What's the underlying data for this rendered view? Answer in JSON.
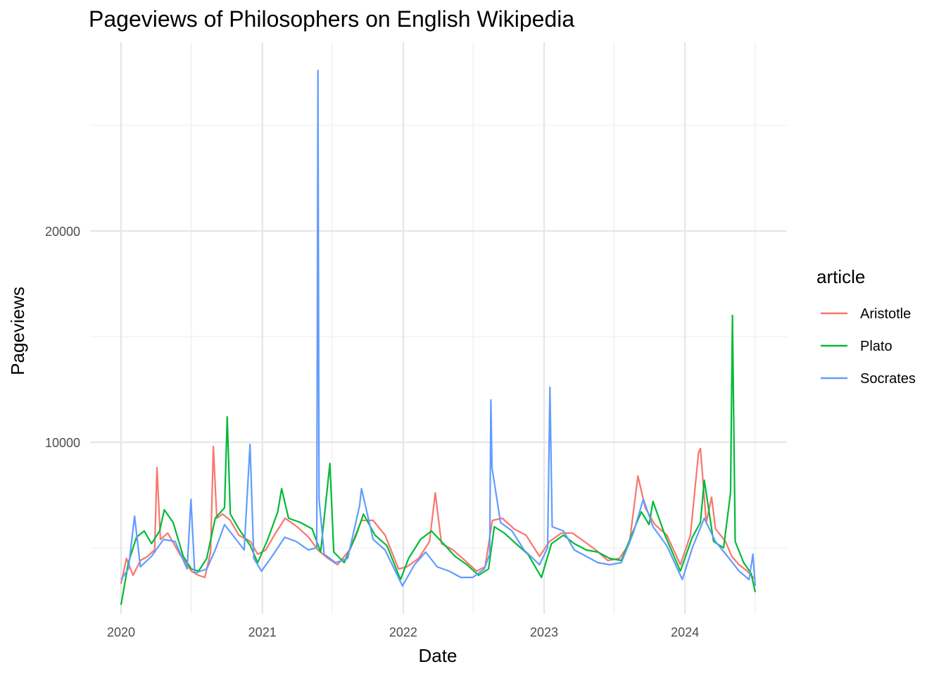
{
  "chart_data": {
    "type": "line",
    "title": "Pageviews of Philosophers on English Wikipedia",
    "xlabel": "Date",
    "ylabel": "Pageviews",
    "x_domain": [
      "2020-01-01",
      "2024-07-01"
    ],
    "ylim": [
      1500,
      28000
    ],
    "y_ticks": [
      10000,
      20000
    ],
    "y_minor_ticks": [
      5000,
      15000,
      25000
    ],
    "x_ticks": [
      {
        "date": "2020-01-01",
        "label": "2020"
      },
      {
        "date": "2021-01-01",
        "label": "2021"
      },
      {
        "date": "2022-01-01",
        "label": "2022"
      },
      {
        "date": "2023-01-01",
        "label": "2023"
      },
      {
        "date": "2024-01-01",
        "label": "2024"
      }
    ],
    "x_minor_ticks": [
      "2020-07-01",
      "2021-07-01",
      "2022-07-01",
      "2023-07-01",
      "2024-07-01"
    ],
    "grid": true,
    "legend": {
      "title": "article",
      "placement": "right"
    },
    "series": [
      {
        "name": "Aristotle",
        "color": "#F8766D",
        "points": [
          [
            "2020-01-01",
            3300
          ],
          [
            "2020-01-15",
            4500
          ],
          [
            "2020-02-01",
            3700
          ],
          [
            "2020-02-20",
            4400
          ],
          [
            "2020-03-10",
            4600
          ],
          [
            "2020-03-28",
            4900
          ],
          [
            "2020-04-03",
            8800
          ],
          [
            "2020-04-12",
            5400
          ],
          [
            "2020-05-01",
            5700
          ],
          [
            "2020-06-01",
            4700
          ],
          [
            "2020-07-01",
            3900
          ],
          [
            "2020-07-20",
            3700
          ],
          [
            "2020-08-05",
            3600
          ],
          [
            "2020-08-20",
            4800
          ],
          [
            "2020-08-27",
            9800
          ],
          [
            "2020-09-05",
            6400
          ],
          [
            "2020-09-20",
            6600
          ],
          [
            "2020-10-10",
            6300
          ],
          [
            "2020-11-01",
            5600
          ],
          [
            "2020-12-01",
            5300
          ],
          [
            "2020-12-20",
            4700
          ],
          [
            "2021-01-10",
            4900
          ],
          [
            "2021-02-01",
            5600
          ],
          [
            "2021-03-01",
            6400
          ],
          [
            "2021-04-01",
            6000
          ],
          [
            "2021-05-01",
            5500
          ],
          [
            "2021-05-25",
            4900
          ],
          [
            "2021-06-20",
            4500
          ],
          [
            "2021-07-15",
            4200
          ],
          [
            "2021-08-15",
            4900
          ],
          [
            "2021-09-15",
            6300
          ],
          [
            "2021-10-15",
            6300
          ],
          [
            "2021-11-15",
            5600
          ],
          [
            "2021-12-20",
            4000
          ],
          [
            "2022-01-10",
            4100
          ],
          [
            "2022-02-10",
            4500
          ],
          [
            "2022-03-10",
            5300
          ],
          [
            "2022-03-25",
            7600
          ],
          [
            "2022-04-10",
            5200
          ],
          [
            "2022-05-10",
            4900
          ],
          [
            "2022-06-10",
            4400
          ],
          [
            "2022-07-10",
            3900
          ],
          [
            "2022-08-01",
            4100
          ],
          [
            "2022-08-20",
            6300
          ],
          [
            "2022-09-15",
            6400
          ],
          [
            "2022-10-15",
            5900
          ],
          [
            "2022-11-15",
            5600
          ],
          [
            "2022-12-20",
            4600
          ],
          [
            "2023-01-15",
            5300
          ],
          [
            "2023-02-15",
            5700
          ],
          [
            "2023-03-15",
            5700
          ],
          [
            "2023-04-15",
            5300
          ],
          [
            "2023-05-15",
            4900
          ],
          [
            "2023-06-15",
            4400
          ],
          [
            "2023-07-15",
            4500
          ],
          [
            "2023-08-10",
            5200
          ],
          [
            "2023-09-01",
            8400
          ],
          [
            "2023-09-20",
            6900
          ],
          [
            "2023-10-15",
            6100
          ],
          [
            "2023-11-15",
            5600
          ],
          [
            "2023-12-20",
            4200
          ],
          [
            "2024-01-15",
            5600
          ],
          [
            "2024-02-05",
            9500
          ],
          [
            "2024-02-10",
            9700
          ],
          [
            "2024-02-25",
            6200
          ],
          [
            "2024-03-10",
            7400
          ],
          [
            "2024-03-20",
            5900
          ],
          [
            "2024-04-15",
            5300
          ],
          [
            "2024-05-01",
            4600
          ],
          [
            "2024-05-20",
            4200
          ],
          [
            "2024-06-10",
            3900
          ],
          [
            "2024-07-01",
            3500
          ]
        ]
      },
      {
        "name": "Plato",
        "color": "#00BA38",
        "points": [
          [
            "2020-01-01",
            2300
          ],
          [
            "2020-01-20",
            4300
          ],
          [
            "2020-02-10",
            5500
          ],
          [
            "2020-03-01",
            5800
          ],
          [
            "2020-03-20",
            5200
          ],
          [
            "2020-04-10",
            5800
          ],
          [
            "2020-04-22",
            6800
          ],
          [
            "2020-05-15",
            6200
          ],
          [
            "2020-06-10",
            4600
          ],
          [
            "2020-07-01",
            4000
          ],
          [
            "2020-07-20",
            3900
          ],
          [
            "2020-08-10",
            4500
          ],
          [
            "2020-09-01",
            6400
          ],
          [
            "2020-09-25",
            6900
          ],
          [
            "2020-10-02",
            11200
          ],
          [
            "2020-10-10",
            6600
          ],
          [
            "2020-11-01",
            5900
          ],
          [
            "2020-12-01",
            5100
          ],
          [
            "2020-12-20",
            4300
          ],
          [
            "2021-01-15",
            5400
          ],
          [
            "2021-02-10",
            6700
          ],
          [
            "2021-02-20",
            7800
          ],
          [
            "2021-03-10",
            6400
          ],
          [
            "2021-04-10",
            6200
          ],
          [
            "2021-05-10",
            5900
          ],
          [
            "2021-06-01",
            4800
          ],
          [
            "2021-06-25",
            9000
          ],
          [
            "2021-07-05",
            4800
          ],
          [
            "2021-08-01",
            4300
          ],
          [
            "2021-09-01",
            5600
          ],
          [
            "2021-09-20",
            6600
          ],
          [
            "2021-10-20",
            5600
          ],
          [
            "2021-11-20",
            5100
          ],
          [
            "2021-12-25",
            3500
          ],
          [
            "2022-01-15",
            4500
          ],
          [
            "2022-02-15",
            5400
          ],
          [
            "2022-03-15",
            5800
          ],
          [
            "2022-04-15",
            5200
          ],
          [
            "2022-05-15",
            4600
          ],
          [
            "2022-06-15",
            4200
          ],
          [
            "2022-07-15",
            3700
          ],
          [
            "2022-08-10",
            4000
          ],
          [
            "2022-08-25",
            6000
          ],
          [
            "2022-09-20",
            5700
          ],
          [
            "2022-10-20",
            5200
          ],
          [
            "2022-11-20",
            4700
          ],
          [
            "2022-12-25",
            3600
          ],
          [
            "2023-01-20",
            5200
          ],
          [
            "2023-02-20",
            5600
          ],
          [
            "2023-03-20",
            5200
          ],
          [
            "2023-04-20",
            4900
          ],
          [
            "2023-05-20",
            4800
          ],
          [
            "2023-06-20",
            4500
          ],
          [
            "2023-07-20",
            4400
          ],
          [
            "2023-08-20",
            5800
          ],
          [
            "2023-09-10",
            6700
          ],
          [
            "2023-09-30",
            6100
          ],
          [
            "2023-10-10",
            7200
          ],
          [
            "2023-11-10",
            5600
          ],
          [
            "2023-12-20",
            3900
          ],
          [
            "2024-01-20",
            5500
          ],
          [
            "2024-02-10",
            6200
          ],
          [
            "2024-02-20",
            8200
          ],
          [
            "2024-03-15",
            5300
          ],
          [
            "2024-04-10",
            5000
          ],
          [
            "2024-04-28",
            7600
          ],
          [
            "2024-05-03",
            16000
          ],
          [
            "2024-05-10",
            5300
          ],
          [
            "2024-06-01",
            4300
          ],
          [
            "2024-06-20",
            3800
          ],
          [
            "2024-07-01",
            2900
          ]
        ]
      },
      {
        "name": "Socrates",
        "color": "#619CFF",
        "points": [
          [
            "2020-01-01",
            3500
          ],
          [
            "2020-01-20",
            4000
          ],
          [
            "2020-02-05",
            6500
          ],
          [
            "2020-02-20",
            4100
          ],
          [
            "2020-03-20",
            4600
          ],
          [
            "2020-04-20",
            5400
          ],
          [
            "2020-05-20",
            5300
          ],
          [
            "2020-06-20",
            4000
          ],
          [
            "2020-06-30",
            7300
          ],
          [
            "2020-07-10",
            3800
          ],
          [
            "2020-08-10",
            4000
          ],
          [
            "2020-09-01",
            4900
          ],
          [
            "2020-09-25",
            6100
          ],
          [
            "2020-10-25",
            5400
          ],
          [
            "2020-11-15",
            4900
          ],
          [
            "2020-11-30",
            9900
          ],
          [
            "2020-12-10",
            4500
          ],
          [
            "2020-12-30",
            3900
          ],
          [
            "2021-01-30",
            4700
          ],
          [
            "2021-02-28",
            5500
          ],
          [
            "2021-03-30",
            5300
          ],
          [
            "2021-04-30",
            4900
          ],
          [
            "2021-05-22",
            5000
          ],
          [
            "2021-05-25",
            27600
          ],
          [
            "2021-05-28",
            7300
          ],
          [
            "2021-06-10",
            4700
          ],
          [
            "2021-07-10",
            4300
          ],
          [
            "2021-08-10",
            4500
          ],
          [
            "2021-09-10",
            7000
          ],
          [
            "2021-09-15",
            7800
          ],
          [
            "2021-10-15",
            5400
          ],
          [
            "2021-11-15",
            4900
          ],
          [
            "2021-12-30",
            3200
          ],
          [
            "2022-01-30",
            4200
          ],
          [
            "2022-02-28",
            4800
          ],
          [
            "2022-03-30",
            4100
          ],
          [
            "2022-04-30",
            3900
          ],
          [
            "2022-05-30",
            3600
          ],
          [
            "2022-06-30",
            3600
          ],
          [
            "2022-07-30",
            4000
          ],
          [
            "2022-08-13",
            4700
          ],
          [
            "2022-08-16",
            12000
          ],
          [
            "2022-08-19",
            8800
          ],
          [
            "2022-09-10",
            6200
          ],
          [
            "2022-10-10",
            5800
          ],
          [
            "2022-11-10",
            4900
          ],
          [
            "2022-12-20",
            4200
          ],
          [
            "2023-01-10",
            5000
          ],
          [
            "2023-01-16",
            12600
          ],
          [
            "2023-01-22",
            6000
          ],
          [
            "2023-02-20",
            5800
          ],
          [
            "2023-03-20",
            4900
          ],
          [
            "2023-04-20",
            4600
          ],
          [
            "2023-05-20",
            4300
          ],
          [
            "2023-06-20",
            4200
          ],
          [
            "2023-07-20",
            4300
          ],
          [
            "2023-08-20",
            5700
          ],
          [
            "2023-09-15",
            7300
          ],
          [
            "2023-10-10",
            6000
          ],
          [
            "2023-11-15",
            5100
          ],
          [
            "2023-12-25",
            3500
          ],
          [
            "2024-01-20",
            5000
          ],
          [
            "2024-02-20",
            6400
          ],
          [
            "2024-03-20",
            5300
          ],
          [
            "2024-04-20",
            4600
          ],
          [
            "2024-05-20",
            3900
          ],
          [
            "2024-06-15",
            3500
          ],
          [
            "2024-06-25",
            4700
          ],
          [
            "2024-07-01",
            3200
          ]
        ]
      }
    ]
  }
}
